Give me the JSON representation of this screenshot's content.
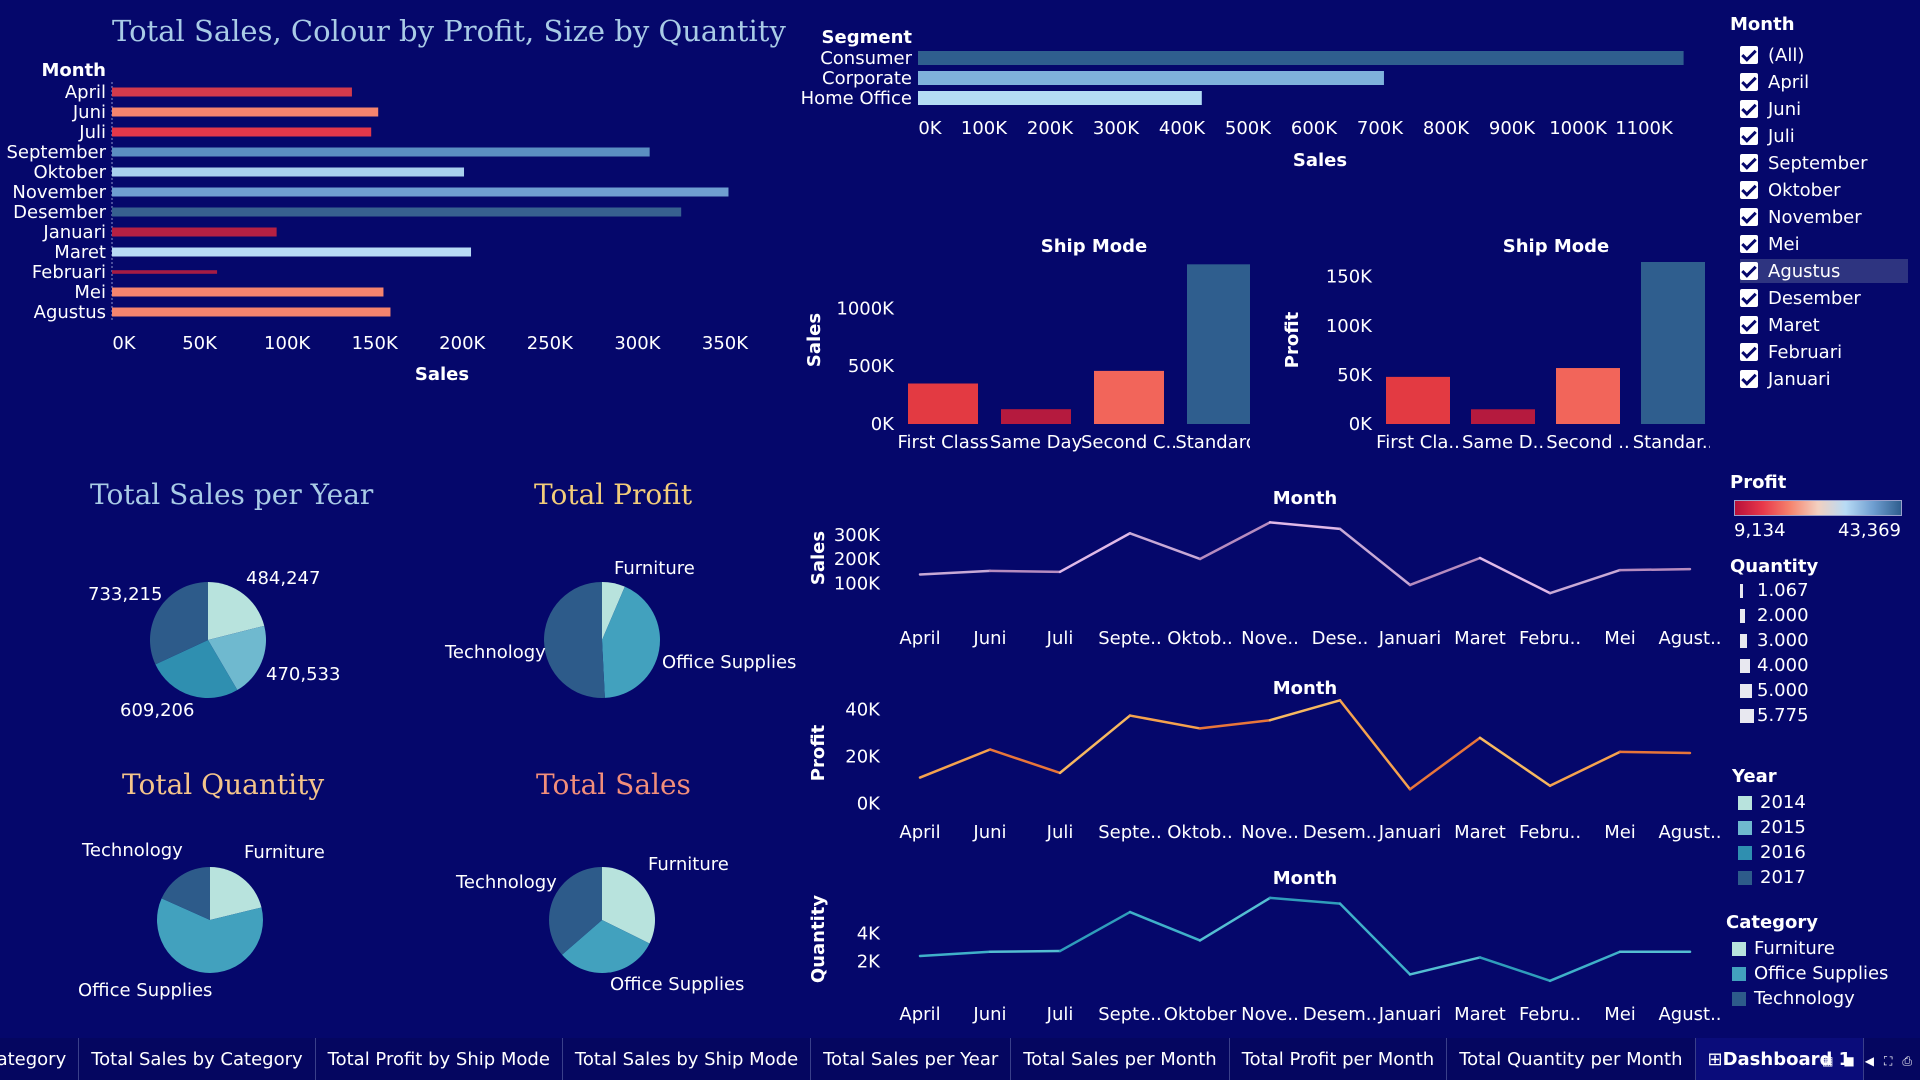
{
  "titles": {
    "bar_month": "Total Sales, Colour by Profit, Size by Quantity",
    "sales_year": "Total Sales per Year",
    "profit": "Total Profit",
    "quantity": "Total Quantity",
    "sales": "Total Sales"
  },
  "colors": {
    "background": "#05076b",
    "sales_year_title": "#a9cbe6",
    "profit_title": "#f2cc7a",
    "quantity_title": "#f4c48a",
    "sales_title": "#f28e7a"
  },
  "chart_data": [
    {
      "id": "month_sales_bar",
      "type": "bar",
      "orientation": "horizontal",
      "title": "Total Sales, Colour by Profit, Size by Quantity",
      "category_header": "Month",
      "xlabel": "Sales",
      "categories": [
        "April",
        "Juni",
        "Juli",
        "September",
        "Oktober",
        "November",
        "Desember",
        "Januari",
        "Maret",
        "Februari",
        "Mei",
        "Agustus"
      ],
      "values": [
        137000,
        152000,
        148000,
        307000,
        201000,
        352000,
        325000,
        94000,
        205000,
        60000,
        155000,
        159000
      ],
      "colors": [
        "#d23a4c",
        "#f5846e",
        "#e3384a",
        "#5b8ec1",
        "#a9d0ee",
        "#6f9ed0",
        "#37608f",
        "#b52043",
        "#b8dbf5",
        "#a51c44",
        "#f5846e",
        "#f5846e"
      ],
      "thickness_by_quantity": [
        1,
        1,
        1,
        1,
        1,
        1,
        1,
        1,
        1,
        0.4,
        1,
        1
      ],
      "xticks": [
        "0K",
        "50K",
        "100K",
        "150K",
        "200K",
        "250K",
        "300K",
        "350K"
      ],
      "xlim": [
        0,
        370000
      ]
    },
    {
      "id": "segment_sales_bar",
      "type": "bar",
      "orientation": "horizontal",
      "category_header": "Segment",
      "xlabel": "Sales",
      "categories": [
        "Consumer",
        "Corporate",
        "Home Office"
      ],
      "values": [
        1160000,
        706000,
        430000
      ],
      "colors": [
        "#2f5e8e",
        "#7fb1dc",
        "#b4dcf5"
      ],
      "xticks": [
        "0K",
        "100K",
        "200K",
        "300K",
        "400K",
        "500K",
        "600K",
        "700K",
        "800K",
        "900K",
        "1000K",
        "1100K"
      ],
      "xlim": [
        0,
        1180000
      ]
    },
    {
      "id": "shipmode_sales_bar",
      "type": "bar",
      "title": "Ship Mode",
      "ylabel": "Sales",
      "categories": [
        "First Class",
        "Same Day",
        "Second C..",
        "Standard.."
      ],
      "values": [
        350000,
        128000,
        459000,
        1380000
      ],
      "colors": [
        "#e33a42",
        "#b51a3e",
        "#f2655a",
        "#2f5e8e"
      ],
      "yticks": [
        "0K",
        "500K",
        "1000K"
      ],
      "ylim": [
        0,
        1400000
      ]
    },
    {
      "id": "shipmode_profit_bar",
      "type": "bar",
      "title": "Ship Mode",
      "ylabel": "Profit",
      "categories": [
        "First Cla..",
        "Same D..",
        "Second ..",
        "Standar.."
      ],
      "values": [
        48000,
        15000,
        57000,
        165000
      ],
      "colors": [
        "#e33a42",
        "#b51a3e",
        "#f2655a",
        "#2f5e8e"
      ],
      "yticks": [
        "0K",
        "50K",
        "100K",
        "150K"
      ],
      "ylim": [
        0,
        165000
      ]
    },
    {
      "id": "sales_per_year_pie",
      "type": "pie",
      "title": "Total Sales per Year",
      "series": [
        {
          "name": "2014",
          "value": 484247,
          "label": "484,247",
          "color": "#b8e3dd"
        },
        {
          "name": "2015",
          "value": 470533,
          "label": "470,533",
          "color": "#6fb9cf"
        },
        {
          "name": "2016",
          "value": 609206,
          "label": "609,206",
          "color": "#2f8fb0"
        },
        {
          "name": "2017",
          "value": 733215,
          "label": "733,215",
          "color": "#2d5b8a"
        }
      ]
    },
    {
      "id": "profit_pie",
      "type": "pie",
      "title": "Total Profit",
      "series": [
        {
          "name": "Furniture",
          "value": 18451,
          "label": "Furniture",
          "color": "#b8e3dd"
        },
        {
          "name": "Office Supplies",
          "value": 122491,
          "label": "Office Supplies",
          "color": "#42a1be"
        },
        {
          "name": "Technology",
          "value": 145455,
          "label": "Technology",
          "color": "#2d5b8a"
        }
      ]
    },
    {
      "id": "quantity_pie",
      "type": "pie",
      "title": "Total Quantity",
      "series": [
        {
          "name": "Furniture",
          "value": 8028,
          "label": "Furniture",
          "color": "#b8e3dd"
        },
        {
          "name": "Office Supplies",
          "value": 22906,
          "label": "Office Supplies",
          "color": "#42a1be"
        },
        {
          "name": "Technology",
          "value": 6939,
          "label": "Technology",
          "color": "#2d5b8a"
        }
      ]
    },
    {
      "id": "sales_pie",
      "type": "pie",
      "title": "Total Sales",
      "series": [
        {
          "name": "Furniture",
          "value": 742000,
          "label": "Furniture",
          "color": "#b8e3dd"
        },
        {
          "name": "Office Supplies",
          "value": 719047,
          "label": "Office Supplies",
          "color": "#42a1be"
        },
        {
          "name": "Technology",
          "value": 836154,
          "label": "Technology",
          "color": "#2d5b8a"
        }
      ]
    },
    {
      "id": "sales_month_line",
      "type": "line",
      "title": "Month",
      "ylabel": "Sales",
      "categories": [
        "April",
        "Juni",
        "Juli",
        "Septe..",
        "Oktob..",
        "Nove..",
        "Dese..",
        "Januari",
        "Maret",
        "Febru..",
        "Mei",
        "Agust.."
      ],
      "values": [
        137000,
        152000,
        148000,
        307000,
        201000,
        352000,
        325000,
        94000,
        205000,
        60000,
        155000,
        159000
      ],
      "yticks": [
        {
          "v": 100000,
          "t": "100K"
        },
        {
          "v": 200000,
          "t": "200K"
        },
        {
          "v": 300000,
          "t": "300K"
        }
      ],
      "ylim": [
        40000,
        370000
      ],
      "colors": [
        "#c8a9d6",
        "#b68bbf",
        "#e0b9e8"
      ]
    },
    {
      "id": "profit_month_line",
      "type": "line",
      "title": "Month",
      "ylabel": "Profit",
      "categories": [
        "April",
        "Juni",
        "Juli",
        "Septe..",
        "Oktob..",
        "Nove..",
        "Desem..",
        "Januari",
        "Maret",
        "Febru..",
        "Mei",
        "Agust.."
      ],
      "values": [
        11000,
        23000,
        13000,
        37500,
        32000,
        35500,
        44000,
        6000,
        28000,
        7500,
        22000,
        21500
      ],
      "yticks": [
        {
          "v": 0,
          "t": "0K"
        },
        {
          "v": 20000,
          "t": "20K"
        },
        {
          "v": 40000,
          "t": "40K"
        }
      ],
      "ylim": [
        -2000,
        45000
      ],
      "colors": [
        "#f5a24e",
        "#e8753a",
        "#f7b860"
      ]
    },
    {
      "id": "quantity_month_line",
      "type": "line",
      "title": "Month",
      "ylabel": "Quantity",
      "categories": [
        "April",
        "Juni",
        "Juli",
        "Septe..",
        "Oktober",
        "Nove..",
        "Desem..",
        "Januari",
        "Maret",
        "Febru..",
        "Mei",
        "Agust.."
      ],
      "values": [
        2400,
        2700,
        2750,
        5500,
        3500,
        6500,
        6100,
        1100,
        2300,
        650,
        2700,
        2700
      ],
      "yticks": [
        {
          "v": 2000,
          "t": "2K"
        },
        {
          "v": 4000,
          "t": "4K"
        }
      ],
      "ylim": [
        0,
        7200
      ],
      "colors": [
        "#3fb0c9",
        "#54bed2",
        "#2f9dbb"
      ]
    }
  ],
  "filter": {
    "title": "Month",
    "items": [
      "(All)",
      "April",
      "Juni",
      "Juli",
      "September",
      "Oktober",
      "November",
      "Mei",
      "Agustus",
      "Desember",
      "Maret",
      "Februari",
      "Januari"
    ],
    "highlighted_index": 8
  },
  "legends": {
    "profit": {
      "title": "Profit",
      "min": "9,134",
      "max": "43,369"
    },
    "quantity": {
      "title": "Quantity",
      "items": [
        "1.067",
        "2.000",
        "3.000",
        "4.000",
        "5.000",
        "5.775"
      ]
    },
    "year": {
      "title": "Year",
      "items": [
        {
          "label": "2014",
          "color": "#b8e3dd"
        },
        {
          "label": "2015",
          "color": "#6fb9cf"
        },
        {
          "label": "2016",
          "color": "#2f8fb0"
        },
        {
          "label": "2017",
          "color": "#2d5b8a"
        }
      ]
    },
    "category": {
      "title": "Category",
      "items": [
        {
          "label": "Furniture",
          "color": "#b8e3dd"
        },
        {
          "label": "Office Supplies",
          "color": "#42a1be"
        },
        {
          "label": "Technology",
          "color": "#2d5b8a"
        }
      ]
    }
  },
  "tabs": {
    "items": [
      "Category",
      "Total Sales by Category",
      "Total Profit by Ship Mode",
      "Total Sales by Ship Mode",
      "Total Sales per Year",
      "Total Sales per Month",
      "Total Profit per Month",
      "Total Quantity per Month",
      "Dashboard 1"
    ],
    "active_index": 8
  }
}
